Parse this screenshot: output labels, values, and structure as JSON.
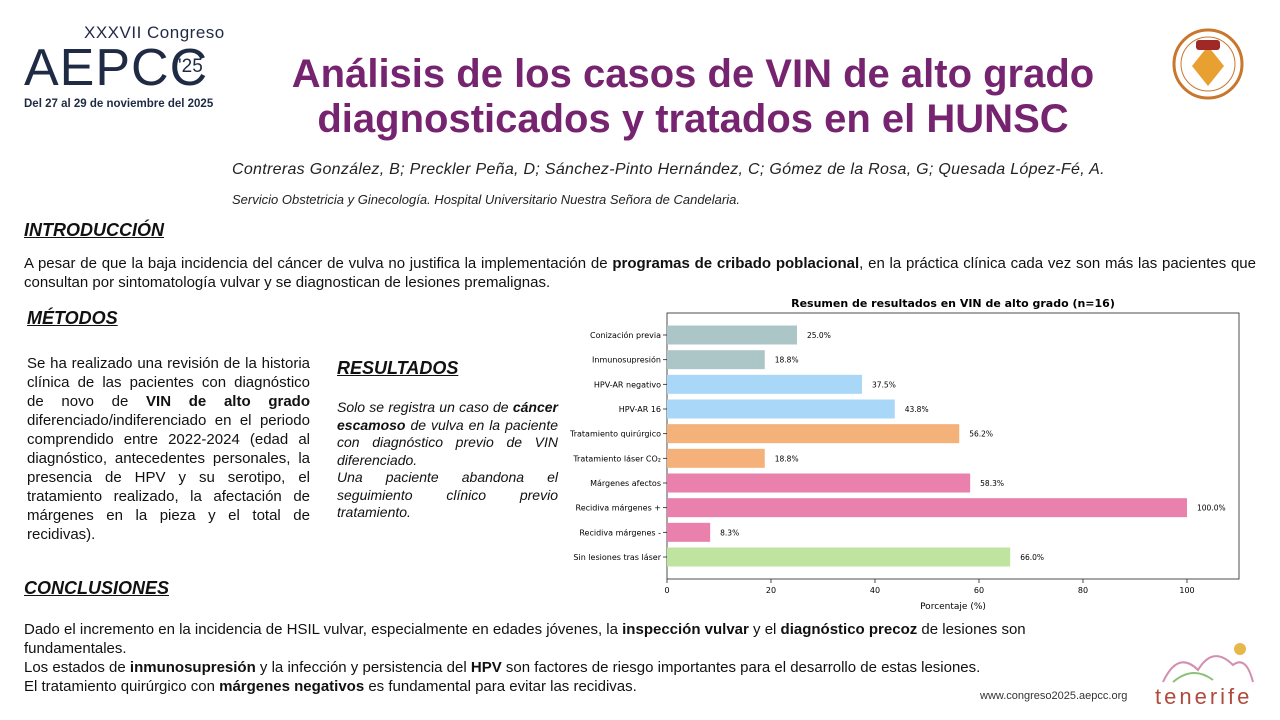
{
  "logo": {
    "edition": "XXXVII Congreso",
    "name": "AEPCC",
    "year": "'25",
    "dates": "Del 27 al 29 de noviembre del 2025"
  },
  "title": [
    "Análisis de los casos de VIN de alto grado",
    "diagnosticados y tratados en el HUNSC"
  ],
  "authors": "Contreras González, B; Preckler Peña, D; Sánchez-Pinto Hernández, C; Gómez de la Rosa, G; Quesada López-Fé, A.",
  "affiliation": "Servicio Obstetricia y Ginecología. Hospital Universitario Nuestra Señora de Candelaria.",
  "introduction": {
    "heading": "INTRODUCCIÓN",
    "paragraph": [
      {
        "text": "A pesar de que la baja incidencia del cáncer de vulva no justifica la implementación de "
      },
      {
        "text": "programas de cribado poblacional",
        "bold": true
      },
      {
        "text": ", en la práctica clínica cada vez son más las pacientes que consultan por sintomatología vulvar y se diagnostican de lesiones premalignas."
      }
    ]
  },
  "methods": {
    "heading": "MÉTODOS",
    "paragraph": [
      {
        "text": "Se ha realizado una revisión de la historia clínica de las pacientes con diagnóstico de novo de "
      },
      {
        "text": "VIN de alto grado",
        "bold": true
      },
      {
        "text": " diferenciado/indiferenciado en el periodo comprendido entre 2022-2024 (edad al diagnóstico, antecedentes personales, la presencia de HPV y su serotipo, el tratamiento realizado, la afectación de márgenes en la pieza y el total de recidivas)."
      }
    ]
  },
  "results": {
    "heading": "RESULTADOS",
    "paragraphs": [
      [
        {
          "text": "Solo se registra un caso de "
        },
        {
          "text": "cáncer escamoso",
          "bold": true
        },
        {
          "text": " de vulva en la paciente con diagnóstico previo de VIN diferenciado."
        }
      ],
      [
        {
          "text": "Una paciente abandona el seguimiento clínico previo tratamiento."
        }
      ]
    ]
  },
  "conclusions": {
    "heading": "CONCLUSIONES",
    "paragraphs": [
      [
        {
          "text": "Dado el incremento en la incidencia de HSIL vulvar, especialmente en edades jóvenes, la "
        },
        {
          "text": "inspección vulvar",
          "bold": true
        },
        {
          "text": " y el "
        },
        {
          "text": "diagnóstico precoz",
          "bold": true
        },
        {
          "text": " de lesiones son fundamentales."
        }
      ],
      [
        {
          "text": "Los estados de "
        },
        {
          "text": "inmunosupresión",
          "bold": true
        },
        {
          "text": " y la infección y persistencia del "
        },
        {
          "text": "HPV",
          "bold": true
        },
        {
          "text": " son factores de riesgo importantes para el desarrollo de estas lesiones."
        }
      ],
      [
        {
          "text": "El tratamiento quirúrgico con "
        },
        {
          "text": "márgenes negativos",
          "bold": true
        },
        {
          "text": " es fundamental para evitar las recidivas."
        }
      ]
    ]
  },
  "footer": {
    "url": "www.congreso2025.aepcc.org",
    "brand": "tenerife"
  },
  "chart_data": {
    "type": "barh",
    "title": "Resumen de resultados en VIN de alto grado (n=16)",
    "xlabel": "Porcentaje (%)",
    "categories": [
      "Conización previa",
      "Inmunosupresión",
      "HPV-AR negativo",
      "HPV-AR 16",
      "Tratamiento quirúrgico",
      "Tratamiento láser CO₂",
      "Márgenes afectos",
      "Recidiva márgenes +",
      "Recidiva márgenes -",
      "Sin lesiones tras láser"
    ],
    "values": [
      25.0,
      18.8,
      37.5,
      43.8,
      56.2,
      18.8,
      58.3,
      100.0,
      8.3,
      66.0
    ],
    "value_labels": [
      "25.0%",
      "18.8%",
      "37.5%",
      "43.8%",
      "56.2%",
      "18.8%",
      "58.3%",
      "100.0%",
      "8.3%",
      "66.0%"
    ],
    "colors": [
      "#acc6c8",
      "#acc6c8",
      "#a8d7f8",
      "#a8d7f8",
      "#f4b27a",
      "#f4b27a",
      "#e981ac",
      "#e981ac",
      "#e981ac",
      "#bfe49f"
    ],
    "xlim": [
      0,
      110
    ],
    "xticks": [
      0,
      20,
      40,
      60,
      80,
      100
    ]
  }
}
